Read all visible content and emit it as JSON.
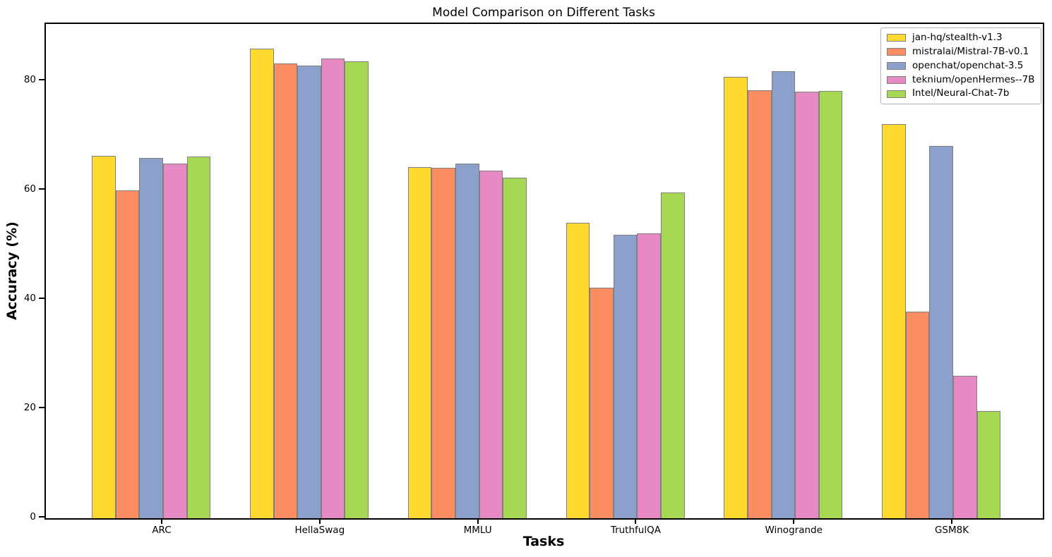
{
  "chart_data": {
    "type": "bar",
    "title": "Model Comparison on Different Tasks",
    "xlabel": "Tasks",
    "ylabel": "Accuracy (%)",
    "categories": [
      "ARC",
      "HellaSwag",
      "MMLU",
      "TruthfulQA",
      "Winogrande",
      "GSM8K"
    ],
    "series": [
      {
        "name": "jan-hq/stealth-v1.3",
        "color": "#FFD92F",
        "values": [
          66.3,
          86.0,
          64.3,
          54.1,
          80.8,
          72.2
        ]
      },
      {
        "name": "mistralai/Mistral-7B-v0.1",
        "color": "#FC8D62",
        "values": [
          60.0,
          83.3,
          64.2,
          42.2,
          78.4,
          37.8
        ]
      },
      {
        "name": "openchat/openchat-3.5",
        "color": "#8DA0CB",
        "values": [
          66.0,
          82.9,
          65.0,
          51.9,
          81.9,
          68.2
        ]
      },
      {
        "name": "teknium/openHermes--7B",
        "color": "#E78AC3",
        "values": [
          64.9,
          84.2,
          63.6,
          52.2,
          78.1,
          26.1
        ]
      },
      {
        "name": "Intel/Neural-Chat-7b",
        "color": "#A6D854",
        "values": [
          66.2,
          83.6,
          62.4,
          59.7,
          78.2,
          19.6
        ]
      }
    ],
    "ylim": [
      0,
      90.5
    ],
    "yticks": [
      0,
      20,
      40,
      60,
      80
    ],
    "grid": false,
    "legend_position": "upper right",
    "bar_edge_color": "#808080",
    "axis_color": "#000000"
  }
}
